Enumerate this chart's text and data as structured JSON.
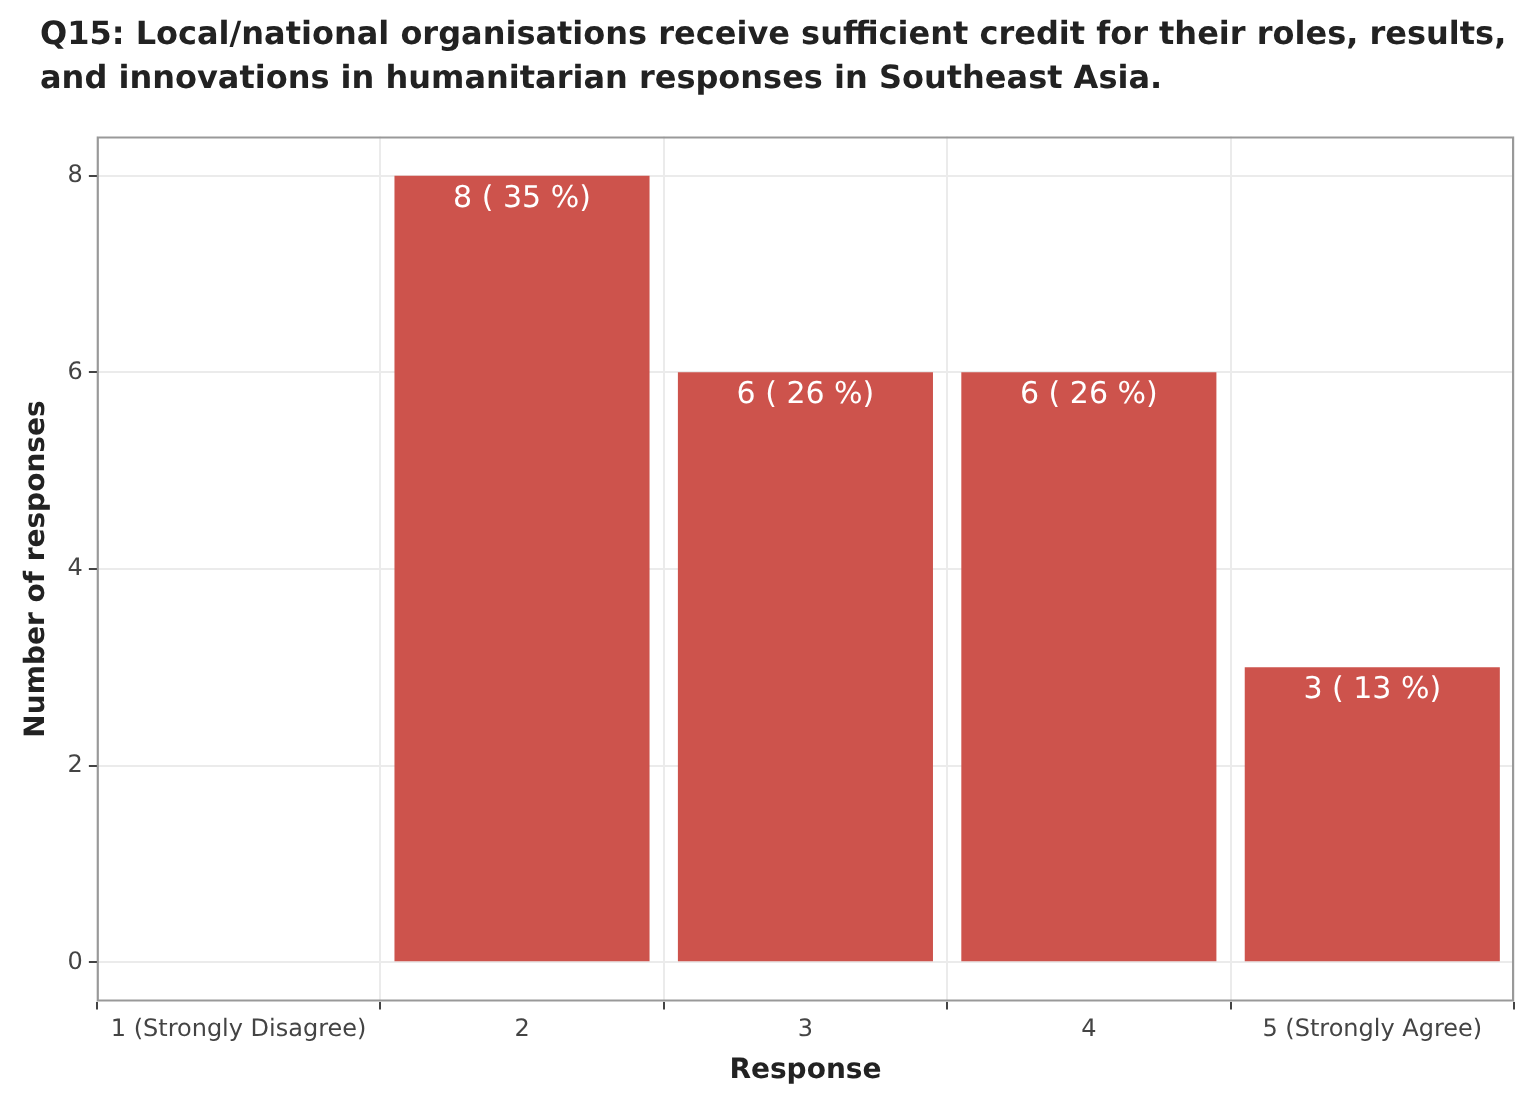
{
  "chart_data": {
    "type": "bar",
    "title": "Q15: Local/national organisations receive sufficient credit for their roles, results, and innovations in humanitarian responses in Southeast Asia.",
    "xlabel": "Response",
    "ylabel": "Number of responses",
    "categories": [
      "1 (Strongly Disagree)",
      "2",
      "3",
      "4",
      "5 (Strongly Agree)"
    ],
    "values": [
      0,
      8,
      6,
      6,
      3
    ],
    "value_labels": [
      null,
      "8 ( 35 %)",
      "6 ( 26 %)",
      "6 ( 26 %)",
      "3 ( 13 %)"
    ],
    "color": "#cd534c",
    "ylim": [
      -0.4,
      8.4
    ],
    "yticks": [
      0,
      2,
      4,
      6,
      8
    ],
    "grid": true,
    "legend": false
  }
}
